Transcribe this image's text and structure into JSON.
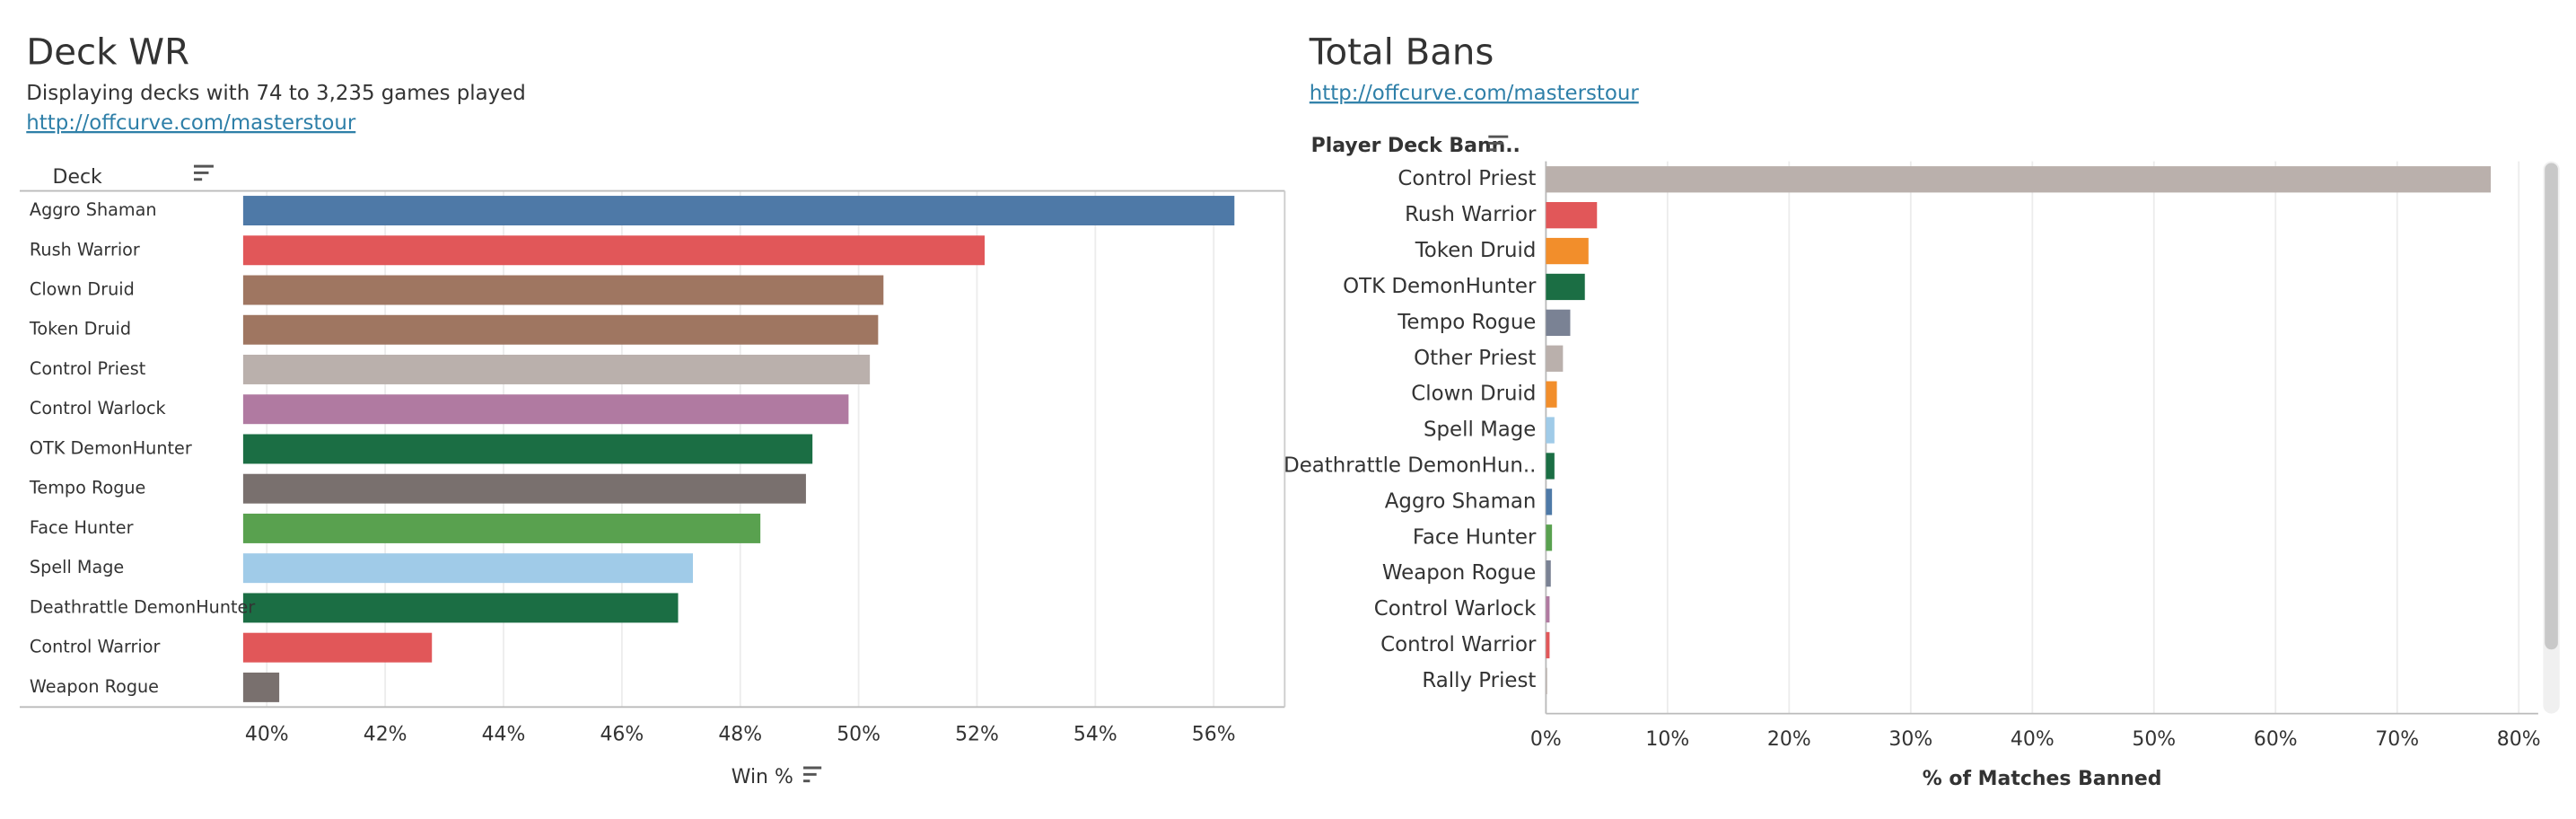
{
  "chart_data": [
    {
      "type": "bar",
      "orientation": "horizontal",
      "title": "Deck WR",
      "subtitle": "Displaying decks with 74 to 3,235 games played",
      "link": "http://offcurve.com/masterstour",
      "y_label": "Deck",
      "x_label": "Win %",
      "categories": [
        "Aggro Shaman",
        "Rush Warrior",
        "Clown Druid",
        "Token Druid",
        "Control Priest",
        "Control Warlock",
        "OTK DemonHunter",
        "Tempo Rogue",
        "Face Hunter",
        "Spell Mage",
        "Deathrattle DemonHunter",
        "Control Warrior",
        "Weapon Rogue"
      ],
      "values": [
        56.35,
        52.13,
        50.42,
        50.33,
        50.19,
        49.83,
        49.22,
        49.11,
        48.34,
        47.2,
        46.95,
        42.79,
        40.21
      ],
      "colors": [
        "#4e79a7",
        "#e15759",
        "#9f7661",
        "#9f7661",
        "#bab0ac",
        "#b07aa1",
        "#1b6e44",
        "#79706e",
        "#59a14f",
        "#a0cbe8",
        "#1b6e44",
        "#e15759",
        "#79706e"
      ],
      "xlim": [
        39.6,
        57.2
      ],
      "xticks": [
        {
          "value": 40,
          "label": "40%"
        },
        {
          "value": 42,
          "label": "42%"
        },
        {
          "value": 44,
          "label": "44%"
        },
        {
          "value": 46,
          "label": "46%"
        },
        {
          "value": 48,
          "label": "48%"
        },
        {
          "value": 50,
          "label": "50%"
        },
        {
          "value": 52,
          "label": "52%"
        },
        {
          "value": 54,
          "label": "54%"
        },
        {
          "value": 56,
          "label": "56%"
        }
      ],
      "grid": true
    },
    {
      "type": "bar",
      "orientation": "horizontal",
      "title": "Total Bans",
      "link": "http://offcurve.com/masterstour",
      "y_label": "Player Deck Bann..",
      "x_label": "% of Matches Banned",
      "categories": [
        "Control Priest",
        "Rush Warrior",
        "Token Druid",
        "OTK DemonHunter",
        "Tempo Rogue",
        "Other Priest",
        "Clown Druid",
        "Spell Mage",
        "Deathrattle DemonHun..",
        "Aggro Shaman",
        "Face Hunter",
        "Weapon Rogue",
        "Control Warlock",
        "Control Warrior",
        "Rally Priest"
      ],
      "values": [
        77.7,
        4.2,
        3.5,
        3.2,
        2.0,
        1.4,
        0.9,
        0.7,
        0.7,
        0.5,
        0.5,
        0.4,
        0.3,
        0.3,
        0.1
      ],
      "colors": [
        "#bab0ac",
        "#e15759",
        "#f28e2b",
        "#1b6e44",
        "#7a8294",
        "#bab0ac",
        "#f28e2b",
        "#a0cbe8",
        "#1b6e44",
        "#4e79a7",
        "#59a14f",
        "#7a8294",
        "#b07aa1",
        "#e15759",
        "#bab0ac"
      ],
      "xlim": [
        0,
        81.6
      ],
      "xticks": [
        {
          "value": 0,
          "label": "0%"
        },
        {
          "value": 10,
          "label": "10%"
        },
        {
          "value": 20,
          "label": "20%"
        },
        {
          "value": 30,
          "label": "30%"
        },
        {
          "value": 40,
          "label": "40%"
        },
        {
          "value": 50,
          "label": "50%"
        },
        {
          "value": 60,
          "label": "60%"
        },
        {
          "value": 70,
          "label": "70%"
        },
        {
          "value": 80,
          "label": "80%"
        }
      ],
      "grid": true
    }
  ]
}
